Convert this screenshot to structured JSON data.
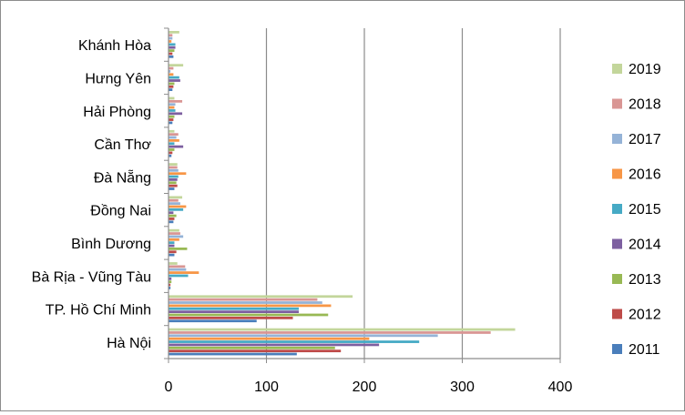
{
  "chart_data": {
    "type": "bar",
    "orientation": "horizontal",
    "title": "",
    "xlabel": "",
    "ylabel": "",
    "xlim": [
      0,
      400
    ],
    "xticks": [
      0,
      100,
      200,
      300,
      400
    ],
    "grid": true,
    "legend_position": "right",
    "categories": [
      "Hà Nội",
      "TP. Hồ Chí Minh",
      "Bà Rịa - Vũng Tàu",
      "Bình Dương",
      "Đồng Nai",
      "Đà Nẵng",
      "Cần Thơ",
      "Hải Phòng",
      "Hưng Yên",
      "Khánh Hòa"
    ],
    "series": [
      {
        "name": "2011",
        "color": "#4a7ebb",
        "values": [
          131,
          90,
          2,
          6,
          5,
          6,
          3,
          4,
          4,
          5
        ]
      },
      {
        "name": "2012",
        "color": "#be4b48",
        "values": [
          176,
          127,
          2,
          8,
          6,
          9,
          4,
          5,
          5,
          4
        ]
      },
      {
        "name": "2013",
        "color": "#98b954",
        "values": [
          170,
          163,
          3,
          19,
          8,
          8,
          6,
          6,
          6,
          6
        ]
      },
      {
        "name": "2014",
        "color": "#7d5fa0",
        "values": [
          215,
          133,
          3,
          6,
          5,
          9,
          15,
          14,
          12,
          7
        ]
      },
      {
        "name": "2015",
        "color": "#46aac5",
        "values": [
          256,
          133,
          20,
          6,
          15,
          10,
          6,
          7,
          11,
          7
        ]
      },
      {
        "name": "2016",
        "color": "#f79646",
        "values": [
          205,
          166,
          31,
          11,
          18,
          18,
          11,
          6,
          5,
          3
        ]
      },
      {
        "name": "2017",
        "color": "#95b3d7",
        "values": [
          275,
          157,
          18,
          15,
          12,
          10,
          8,
          7,
          2,
          4
        ]
      },
      {
        "name": "2018",
        "color": "#d99694",
        "values": [
          329,
          152,
          17,
          12,
          10,
          9,
          10,
          14,
          5,
          4
        ]
      },
      {
        "name": "2019",
        "color": "#c3d69b",
        "values": [
          354,
          188,
          9,
          11,
          14,
          9,
          6,
          6,
          15,
          11
        ]
      }
    ]
  }
}
